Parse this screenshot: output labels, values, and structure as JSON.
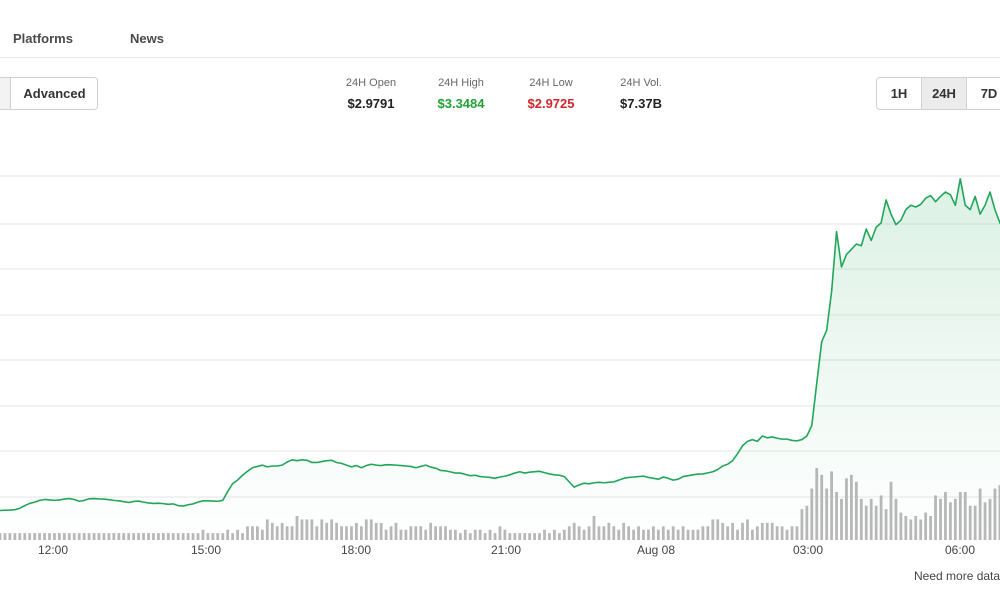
{
  "nav": {
    "items": [
      "Platforms",
      "News"
    ]
  },
  "toolbar": {
    "mode_label": "Advanced",
    "ranges": [
      {
        "label": "1H",
        "active": false
      },
      {
        "label": "24H",
        "active": true
      },
      {
        "label": "7D",
        "active": false
      }
    ]
  },
  "stats": [
    {
      "label": "24H Open",
      "value": "$2.9791",
      "tone": "plain"
    },
    {
      "label": "24H High",
      "value": "$3.3484",
      "tone": "pos"
    },
    {
      "label": "24H Low",
      "value": "$2.9725",
      "tone": "neg"
    },
    {
      "label": "24H Vol.",
      "value": "$7.37B",
      "tone": "plain"
    }
  ],
  "colors": {
    "line": "#21a65a",
    "fill": "#21a65a",
    "volume": "#b8b8b8",
    "grid": "#e6e6e6",
    "high": "#21a336",
    "low": "#d0262b"
  },
  "footnote": "Need more data",
  "chart_data": {
    "type": "area",
    "title": "",
    "xlabel": "",
    "ylabel": "",
    "grid": true,
    "x_ticks": [
      "12:00",
      "15:00",
      "18:00",
      "21:00",
      "Aug 08",
      "03:00",
      "06:00"
    ],
    "x_range": [
      "10:40",
      "07:20"
    ],
    "ylim": [
      2.94,
      3.36
    ],
    "series": [
      {
        "values": [
          2.9735,
          2.9738,
          2.974,
          2.9744,
          2.976,
          2.979,
          2.9815,
          2.983,
          2.985,
          2.986,
          2.9855,
          2.985,
          2.9855,
          2.9865,
          2.987,
          2.986,
          2.984,
          2.985,
          2.9868,
          2.987,
          2.9866,
          2.9865,
          2.9858,
          2.985,
          2.9845,
          2.9835,
          2.9826,
          2.9838,
          2.9842,
          2.983,
          2.9821,
          2.9815,
          2.9818,
          2.9813,
          2.9805,
          2.981,
          2.979,
          2.9785,
          2.98,
          2.981,
          2.983,
          2.9845,
          2.9845,
          2.9842,
          2.984,
          2.985,
          2.995,
          3.004,
          3.008,
          3.0135,
          3.018,
          3.022,
          3.0235,
          3.025,
          3.023,
          3.024,
          3.024,
          3.025,
          3.0285,
          3.031,
          3.03,
          3.031,
          3.0305,
          3.028,
          3.028,
          3.029,
          3.03,
          3.0305,
          3.028,
          3.027,
          3.025,
          3.023,
          3.0245,
          3.022,
          3.0245,
          3.026,
          3.025,
          3.0245,
          3.0255,
          3.0253,
          3.025,
          3.0245,
          3.024,
          3.0235,
          3.022,
          3.0235,
          3.025,
          3.0228,
          3.0215,
          3.019,
          3.0185,
          3.0173,
          3.016,
          3.016,
          3.0145,
          3.013,
          3.0135,
          3.012,
          3.0115,
          3.011,
          3.01,
          3.0115,
          3.0125,
          3.014,
          3.016,
          3.0175,
          3.016,
          3.017,
          3.0175,
          3.018,
          3.0165,
          3.015,
          3.014,
          3.0135,
          3.012,
          3.006,
          3.0,
          3.0025,
          3.0045,
          3.0038,
          3.005,
          3.0055,
          3.005,
          3.0055,
          3.006,
          3.008,
          3.01,
          3.011,
          3.0115,
          3.012,
          3.0125,
          3.011,
          3.01,
          3.009,
          3.0115,
          3.01,
          3.008,
          3.009,
          3.012,
          3.013,
          3.014,
          3.0148,
          3.015,
          3.0162,
          3.0175,
          3.02,
          3.024,
          3.026,
          3.03,
          3.038,
          3.047,
          3.052,
          3.054,
          3.052,
          3.058,
          3.056,
          3.057,
          3.0555,
          3.0545,
          3.0545,
          3.053,
          3.0525,
          3.054,
          3.058,
          3.07,
          3.118,
          3.165,
          3.178,
          3.222,
          3.29,
          3.25,
          3.264,
          3.27,
          3.276,
          3.274,
          3.293,
          3.28,
          3.295,
          3.3,
          3.326,
          3.31,
          3.298,
          3.303,
          3.315,
          3.32,
          3.318,
          3.321,
          3.328,
          3.331,
          3.324,
          3.33,
          3.335,
          3.332,
          3.32,
          3.35,
          3.32,
          3.315,
          3.33,
          3.31,
          3.32,
          3.335,
          3.315,
          3.3,
          3.292,
          3.305,
          3.298
        ]
      }
    ],
    "volume": {
      "values": [
        1.0,
        1.0,
        1.0,
        1.0,
        1.0,
        1.0,
        1.0,
        1.0,
        1.0,
        1.0,
        1.0,
        1.0,
        1.0,
        1.0,
        1.0,
        1.0,
        1.0,
        1.0,
        1.0,
        1.0,
        1.0,
        1.0,
        1.0,
        1.0,
        1.0,
        1.0,
        1.0,
        1.0,
        1.0,
        1.0,
        1.0,
        1.0,
        1.0,
        1.0,
        1.0,
        1.0,
        1.0,
        1.0,
        1.0,
        1.0,
        1.0,
        1.5,
        1.0,
        1.0,
        1.0,
        1.0,
        1.5,
        1.0,
        1.5,
        1.0,
        2.0,
        2.0,
        2.0,
        1.5,
        3.0,
        2.5,
        2.0,
        2.5,
        2.0,
        2.0,
        3.5,
        3.0,
        3.0,
        3.0,
        2.0,
        3.0,
        2.5,
        3.0,
        2.5,
        2.0,
        2.0,
        2.0,
        2.5,
        2.0,
        3.0,
        3.0,
        2.5,
        2.5,
        1.5,
        2.0,
        2.5,
        1.5,
        1.5,
        2.0,
        2.0,
        2.0,
        1.5,
        2.5,
        2.0,
        2.0,
        2.0,
        1.5,
        1.5,
        1.0,
        1.5,
        1.0,
        1.5,
        1.5,
        1.0,
        1.5,
        1.0,
        2.0,
        1.5,
        1.0,
        1.0,
        1.0,
        1.0,
        1.0,
        1.0,
        1.0,
        1.5,
        1.0,
        1.5,
        1.0,
        1.5,
        2.0,
        2.5,
        2.0,
        1.5,
        2.0,
        3.5,
        2.0,
        2.0,
        2.5,
        2.0,
        1.5,
        2.5,
        2.0,
        1.5,
        2.0,
        1.5,
        1.5,
        2.0,
        1.5,
        2.0,
        1.5,
        2.0,
        1.5,
        2.0,
        1.5,
        1.5,
        1.5,
        2.0,
        2.0,
        3.0,
        3.0,
        2.5,
        2.0,
        2.5,
        1.5,
        2.5,
        3.0,
        1.5,
        2.0,
        2.5,
        2.5,
        2.5,
        2.0,
        2.0,
        1.5,
        2.0,
        2.0,
        4.5,
        5.0,
        7.5,
        10.5,
        9.5,
        7.5,
        10.0,
        7.0,
        6.0,
        9.0,
        9.5,
        8.5,
        6.0,
        5.0,
        6.0,
        5.0,
        6.5,
        4.5,
        8.5,
        6.0,
        4.0,
        3.5,
        3.0,
        3.5,
        3.0,
        4.0,
        3.5,
        6.5,
        6.0,
        7.0,
        5.5,
        6.0,
        7.0,
        7.0,
        5.0,
        5.0,
        7.5,
        5.5,
        6.0,
        7.5,
        8.0
      ]
    }
  }
}
